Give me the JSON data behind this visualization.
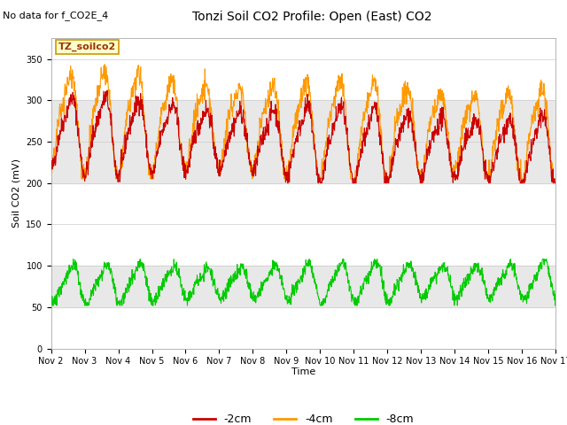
{
  "title": "Tonzi Soil CO2 Profile: Open (East) CO2",
  "no_data_text": "No data for f_CO2E_4",
  "ylabel": "Soil CO2 (mV)",
  "xlabel": "Time",
  "ylim": [
    0,
    375
  ],
  "xlim_days": [
    0,
    15
  ],
  "legend_box_label": "TZ_soilco2",
  "color_2cm": "#cc0000",
  "color_4cm": "#ff9900",
  "color_8cm": "#00cc00",
  "label_2cm": "-2cm",
  "label_4cm": "-4cm",
  "label_8cm": "-8cm",
  "xtick_labels": [
    "Nov 2",
    "Nov 3",
    "Nov 4",
    "Nov 5",
    "Nov 6",
    "Nov 7",
    "Nov 8",
    "Nov 9",
    "Nov 10",
    "Nov 11",
    "Nov 12",
    "Nov 13",
    "Nov 14",
    "Nov 15",
    "Nov 16",
    "Nov 17"
  ],
  "ytick_values": [
    0,
    50,
    100,
    150,
    200,
    250,
    300,
    350
  ],
  "gray_band1": [
    50,
    100
  ],
  "gray_band2": [
    200,
    300
  ],
  "n_points": 1500,
  "days_total": 15,
  "amp_2cm": 38,
  "mean_2cm": 262,
  "amp_4cm": 52,
  "mean_4cm": 278,
  "amp_8cm": 20,
  "mean_8cm": 78,
  "period_hours": 24,
  "noise_scale_2cm": 6,
  "noise_scale_4cm": 7,
  "noise_scale_8cm": 4,
  "trend_2cm": -1.5,
  "trend_4cm": -1.2,
  "trend_8cm": 0.3,
  "background_color": "#ffffff",
  "grid_color": "#cccccc",
  "linewidth": 0.8,
  "title_fontsize": 10,
  "tick_fontsize": 7,
  "label_fontsize": 8,
  "legend_fontsize": 9
}
